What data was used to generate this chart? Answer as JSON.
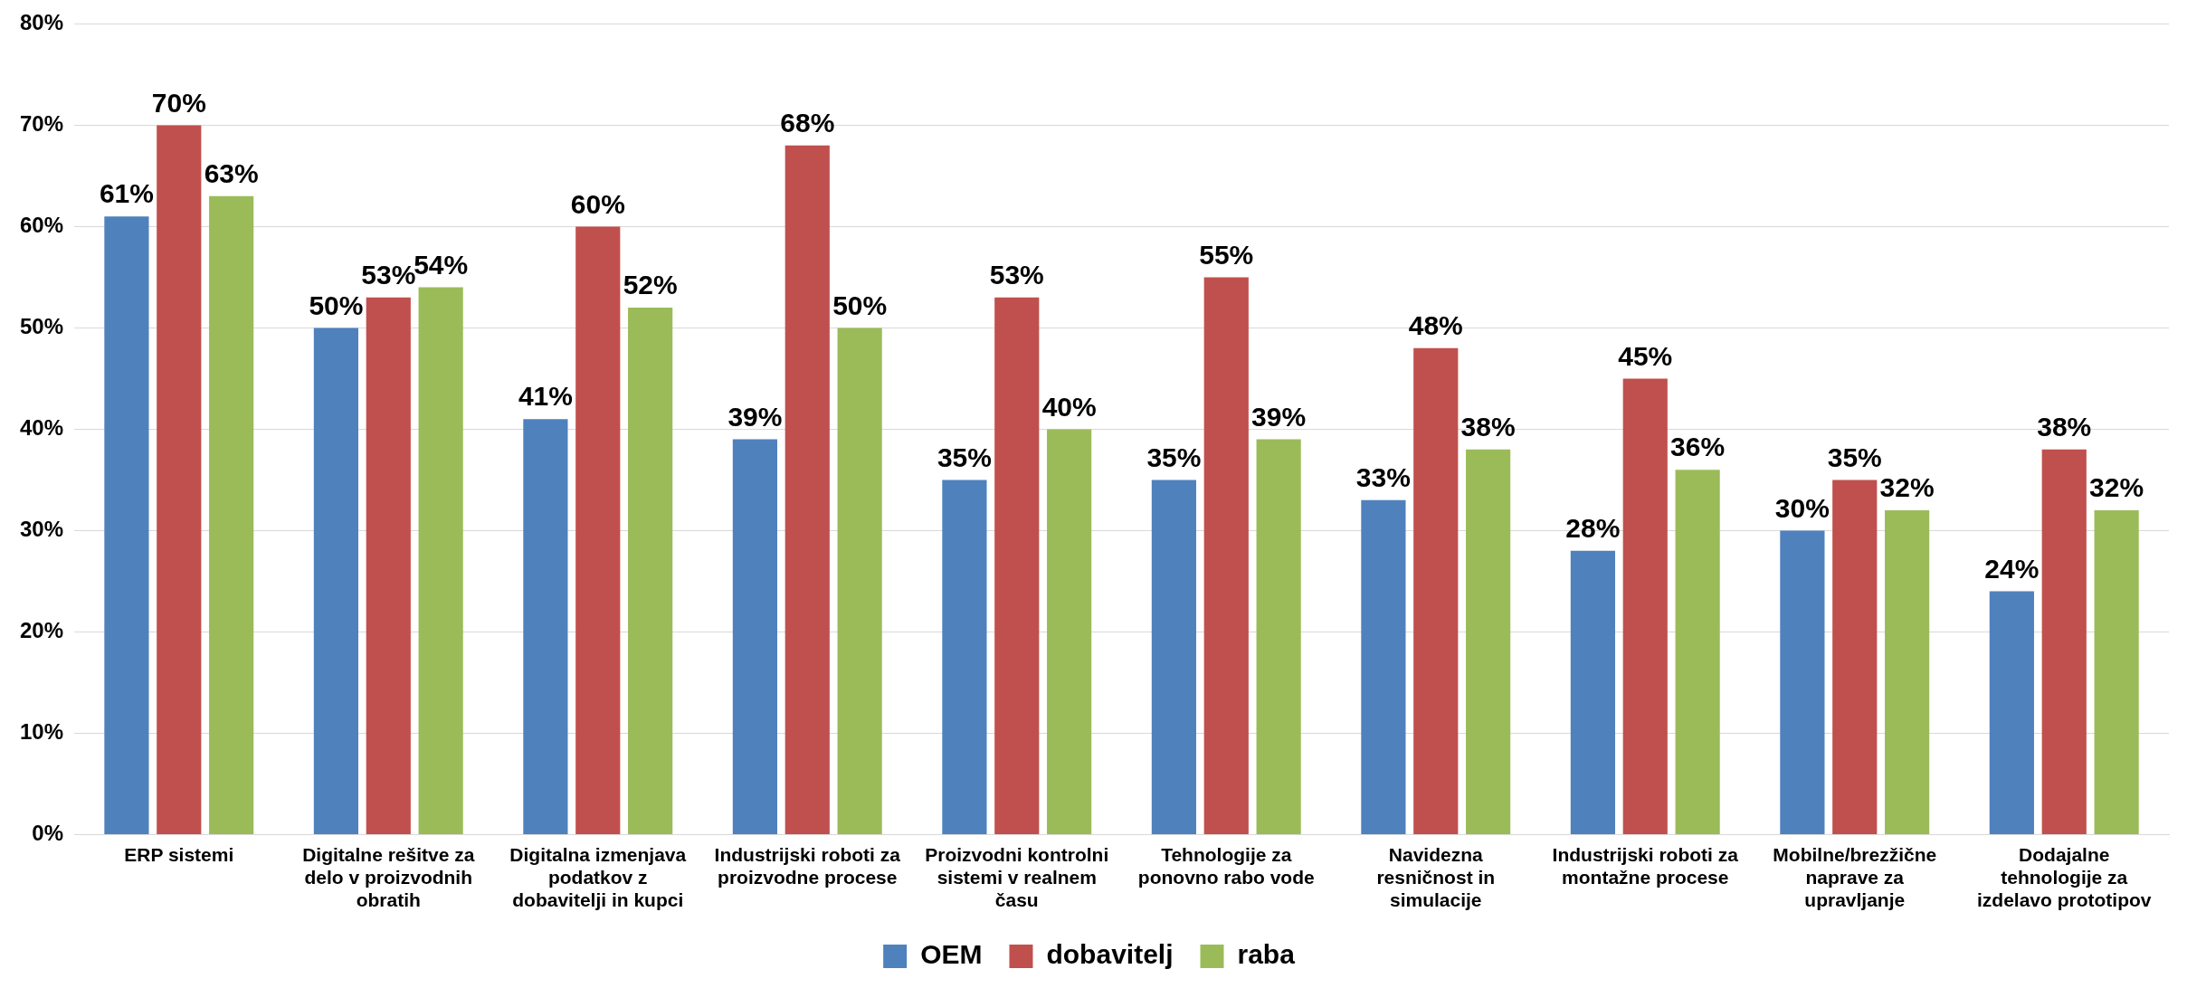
{
  "chart_data": {
    "type": "bar",
    "categories": [
      "ERP sistemi",
      "Digitalne rešitve za delo v proizvodnih obratih",
      "Digitalna izmenjava podatkov z dobavitelji in kupci",
      "Industrijski roboti za proizvodne procese",
      "Proizvodni kontrolni sistemi v realnem času",
      "Tehnologije za ponovno rabo vode",
      "Navidezna resničnost in simulacije",
      "Industrijski roboti za montažne procese",
      "Mobilne/brezžične naprave za upravljanje",
      "Dodajalne tehnologije za izdelavo prototipov"
    ],
    "series": [
      {
        "name": "OEM",
        "color": "#4f81bd",
        "values": [
          61,
          50,
          41,
          39,
          35,
          35,
          33,
          28,
          30,
          24
        ],
        "value_labels": [
          "61%",
          "50%",
          "41%",
          "39%",
          "35%",
          "35%",
          "33%",
          "28%",
          "30%",
          "24%"
        ]
      },
      {
        "name": "dobavitelj",
        "color": "#c0504d",
        "values": [
          70,
          53,
          60,
          68,
          53,
          55,
          48,
          45,
          35,
          38
        ],
        "value_labels": [
          "70%",
          "53%",
          "60%",
          "68%",
          "53%",
          "55%",
          "48%",
          "45%",
          "35%",
          "38%"
        ]
      },
      {
        "name": "raba",
        "color": "#9bbb59",
        "values": [
          63,
          54,
          52,
          50,
          40,
          39,
          38,
          36,
          32,
          32
        ],
        "value_labels": [
          "63%",
          "54%",
          "52%",
          "50%",
          "40%",
          "39%",
          "38%",
          "36%",
          "32%",
          "32%"
        ]
      }
    ],
    "ylim": [
      0,
      80
    ],
    "yticks": [
      {
        "value": 0,
        "label": "0%"
      },
      {
        "value": 10,
        "label": "10%"
      },
      {
        "value": 20,
        "label": "20%"
      },
      {
        "value": 30,
        "label": "30%"
      },
      {
        "value": 40,
        "label": "40%"
      },
      {
        "value": 50,
        "label": "50%"
      },
      {
        "value": 60,
        "label": "60%"
      },
      {
        "value": 70,
        "label": "70%"
      },
      {
        "value": 80,
        "label": "80%"
      }
    ],
    "grid": "y",
    "legend": "bottom"
  }
}
